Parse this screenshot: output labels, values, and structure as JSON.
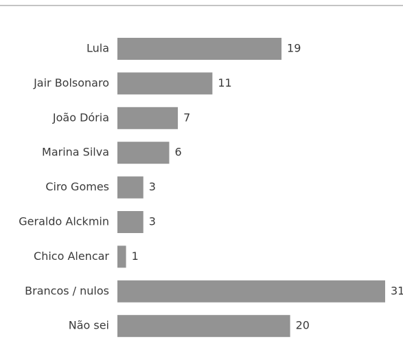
{
  "chart_data": {
    "type": "barh",
    "color": "#939393",
    "categories": [
      "Lula",
      "Jair Bolsonaro",
      "João Dória",
      "Marina Silva",
      "Ciro Gomes",
      "Geraldo Alckmin",
      "Chico Alencar",
      "Brancos / nulos",
      "Não sei"
    ],
    "values": [
      19,
      11,
      7,
      6,
      3,
      3,
      1,
      31,
      20
    ]
  }
}
